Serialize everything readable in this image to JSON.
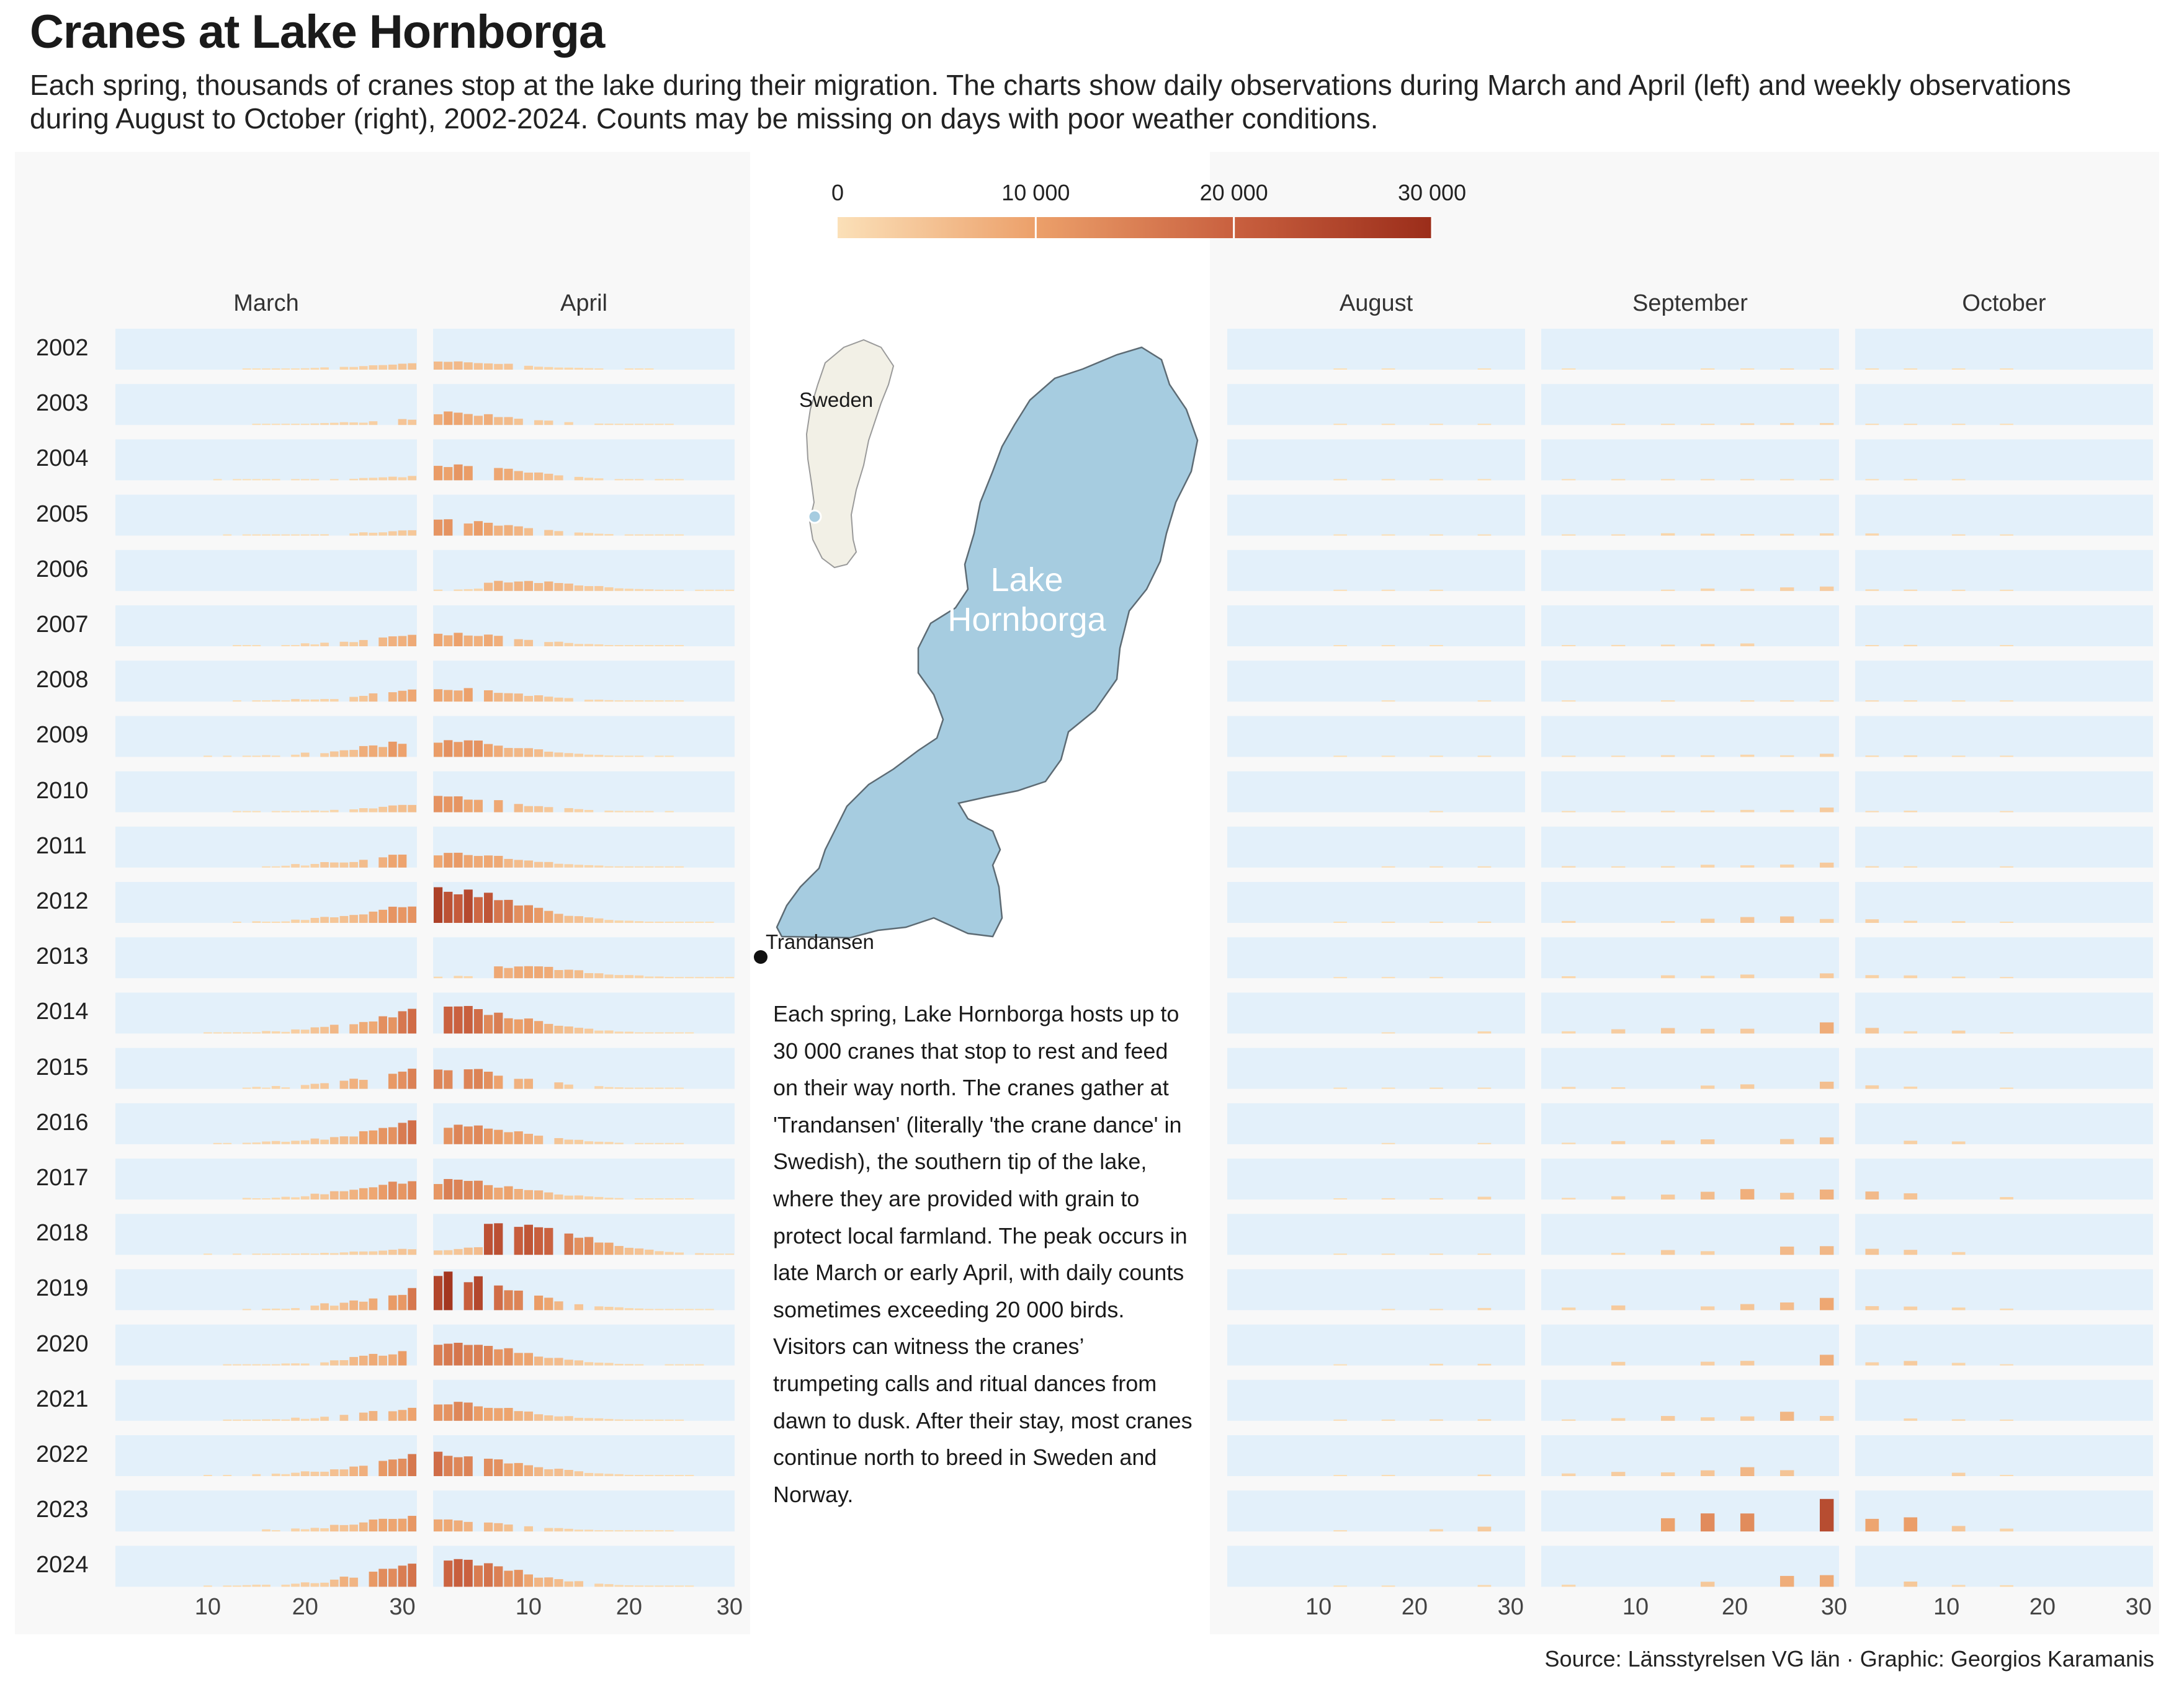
{
  "header": {
    "title": "Cranes at Lake Hornborga",
    "subtitle": "Each spring, thousands of cranes stop at the lake during their migration. The charts show daily observations during March and April (left) and weekly observations during August to October (right), 2002-2024. Counts may be missing on days with poor weather conditions."
  },
  "legend": {
    "ticks": [
      "0",
      "10 000",
      "20 000",
      "30 000"
    ],
    "min": 0,
    "max": 30000,
    "colors": [
      "#fbe0b8",
      "#eca06a",
      "#c9603f",
      "#9b2d1a"
    ]
  },
  "map": {
    "country_label": "Sweden",
    "lake_label_line1": "Lake",
    "lake_label_line2": "Hornborga",
    "site_label": "Trandansen",
    "lake_color": "#a6cce0",
    "land_color": "#f2f0e6"
  },
  "description": "Each spring, Lake Hornborga hosts up to 30 000 cranes that stop to rest and feed on their way north. The cranes gather at 'Trandansen' (literally 'the crane dance' in Swedish), the southern tip of the lake, where they are provided with grain to protect local farmland. The peak occurs in late March or early April, with daily counts sometimes exceeding 20 000 birds. Visitors can witness the cranes’ trumpeting calls and ritual dances from dawn to dusk. After their stay, most cranes continue north to breed in Sweden and Norway.",
  "source": "Source: Länsstyrelsen VG län · Graphic: Georgios Karamanis",
  "chart_data": {
    "type": "bar",
    "panel_background": "#e3f0fa",
    "months_spring": [
      "March",
      "April"
    ],
    "months_autumn": [
      "August",
      "September",
      "October"
    ],
    "x_ticks": [
      "10",
      "20",
      "30"
    ],
    "years": [
      "2002",
      "2003",
      "2004",
      "2005",
      "2006",
      "2007",
      "2008",
      "2009",
      "2010",
      "2011",
      "2012",
      "2013",
      "2014",
      "2015",
      "2016",
      "2017",
      "2018",
      "2019",
      "2020",
      "2021",
      "2022",
      "2023",
      "2024"
    ],
    "spring_peaks_approx": [
      {
        "year": "2002",
        "march_end": 5000,
        "april_early": 6000
      },
      {
        "year": "2003",
        "march_end": 4500,
        "april_early": 9000
      },
      {
        "year": "2004",
        "march_end": 3000,
        "april_early": 12000
      },
      {
        "year": "2005",
        "march_end": 4000,
        "april_early": 11000
      },
      {
        "year": "2006",
        "march_end": 0,
        "april_early": 7500
      },
      {
        "year": "2007",
        "march_end": 9000,
        "april_early": 10000
      },
      {
        "year": "2008",
        "march_end": 9000,
        "april_early": 10000
      },
      {
        "year": "2009",
        "march_end": 13000,
        "april_early": 12000
      },
      {
        "year": "2010",
        "march_end": 6000,
        "april_early": 11000
      },
      {
        "year": "2011",
        "march_end": 12000,
        "april_early": 11000
      },
      {
        "year": "2012",
        "march_end": 14000,
        "april_early": 24000
      },
      {
        "year": "2013",
        "march_end": 0,
        "april_early": 9000
      },
      {
        "year": "2014",
        "march_end": 17000,
        "april_early": 20000
      },
      {
        "year": "2015",
        "march_end": 15000,
        "april_early": 15000
      },
      {
        "year": "2016",
        "march_end": 17000,
        "april_early": 15000
      },
      {
        "year": "2017",
        "march_end": 16000,
        "april_early": 14000
      },
      {
        "year": "2018",
        "march_end": 5000,
        "april_early": 25000
      },
      {
        "year": "2019",
        "march_end": 15000,
        "april_early": 26000
      },
      {
        "year": "2020",
        "march_end": 12000,
        "april_early": 18000
      },
      {
        "year": "2021",
        "march_end": 11000,
        "april_early": 13000
      },
      {
        "year": "2022",
        "march_end": 15000,
        "april_early": 17000
      },
      {
        "year": "2023",
        "march_end": 13000,
        "april_early": 8000
      },
      {
        "year": "2024",
        "march_end": 18000,
        "april_early": 19000
      }
    ],
    "autumn_peaks_approx": [
      {
        "year": "2002",
        "peak": 800
      },
      {
        "year": "2003",
        "peak": 1500
      },
      {
        "year": "2004",
        "peak": 900
      },
      {
        "year": "2005",
        "peak": 3000
      },
      {
        "year": "2006",
        "peak": 3000
      },
      {
        "year": "2007",
        "peak": 2500
      },
      {
        "year": "2008",
        "peak": 1500
      },
      {
        "year": "2009",
        "peak": 2500
      },
      {
        "year": "2010",
        "peak": 3000
      },
      {
        "year": "2011",
        "peak": 3500
      },
      {
        "year": "2012",
        "peak": 5000
      },
      {
        "year": "2013",
        "peak": 5000
      },
      {
        "year": "2014",
        "peak": 7500
      },
      {
        "year": "2015",
        "peak": 5000
      },
      {
        "year": "2016",
        "peak": 6500
      },
      {
        "year": "2017",
        "peak": 9500
      },
      {
        "year": "2018",
        "peak": 7500
      },
      {
        "year": "2019",
        "peak": 8500
      },
      {
        "year": "2020",
        "peak": 7500
      },
      {
        "year": "2021",
        "peak": 7000
      },
      {
        "year": "2022",
        "peak": 8500
      },
      {
        "year": "2023",
        "peak": 22000
      },
      {
        "year": "2024",
        "peak": 8000
      }
    ]
  }
}
